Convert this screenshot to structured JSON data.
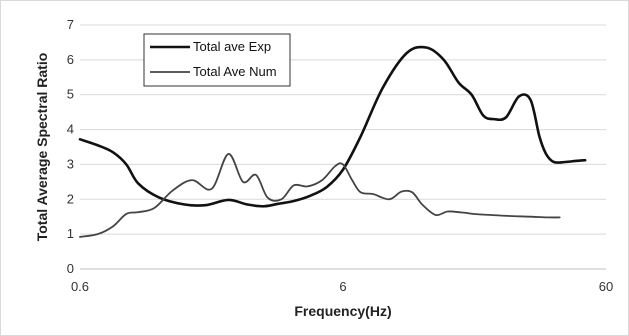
{
  "chart_data": {
    "type": "line",
    "xscale": "log",
    "xlabel": "Frequency(Hz)",
    "ylabel": "Total Average Spectral Ratio",
    "xlim": [
      0.6,
      60
    ],
    "ylim": [
      0,
      7
    ],
    "x_ticks": [
      "0.6",
      "6",
      "60"
    ],
    "y_ticks": [
      "0",
      "1",
      "2",
      "3",
      "4",
      "5",
      "6",
      "7"
    ],
    "grid": "horizontal",
    "legend_position": "top-left",
    "series": [
      {
        "name": "Total ave Exp",
        "color": "#111111",
        "x": [
          0.6,
          0.7,
          0.8,
          0.9,
          1.0,
          1.2,
          1.5,
          1.8,
          2.2,
          2.6,
          3.0,
          3.4,
          3.9,
          4.5,
          5.2,
          6.0,
          7.0,
          8.5,
          10.5,
          12.5,
          14.5,
          16.5,
          18.5,
          20.5,
          22.5,
          25.0,
          28.0,
          31.0,
          33.5,
          35.5,
          38.0,
          42.0,
          46.0,
          50.0
        ],
        "y": [
          3.72,
          3.55,
          3.35,
          3.0,
          2.45,
          2.05,
          1.85,
          1.83,
          1.98,
          1.85,
          1.8,
          1.87,
          1.95,
          2.1,
          2.35,
          2.85,
          3.8,
          5.2,
          6.2,
          6.35,
          6.0,
          5.35,
          5.0,
          4.4,
          4.3,
          4.35,
          4.95,
          4.85,
          3.8,
          3.3,
          3.07,
          3.07,
          3.1,
          3.12
        ]
      },
      {
        "name": "Total Ave Num",
        "color": "#444444",
        "x": [
          0.6,
          0.7,
          0.8,
          0.9,
          1.0,
          1.15,
          1.35,
          1.6,
          1.9,
          2.2,
          2.5,
          2.8,
          3.1,
          3.5,
          3.9,
          4.4,
          5.0,
          5.6,
          6.0,
          6.5,
          7.0,
          7.8,
          9.0,
          10.0,
          11.0,
          12.0,
          13.5,
          15.0,
          17.0,
          19.5,
          22.0,
          26.0,
          31.0,
          36.0,
          40.0
        ],
        "y": [
          0.92,
          1.0,
          1.22,
          1.58,
          1.63,
          1.75,
          2.25,
          2.55,
          2.3,
          3.3,
          2.5,
          2.7,
          2.05,
          2.0,
          2.4,
          2.37,
          2.55,
          2.95,
          3.0,
          2.55,
          2.2,
          2.15,
          2.0,
          2.22,
          2.2,
          1.85,
          1.55,
          1.65,
          1.62,
          1.57,
          1.55,
          1.52,
          1.5,
          1.48,
          1.48
        ]
      }
    ]
  }
}
